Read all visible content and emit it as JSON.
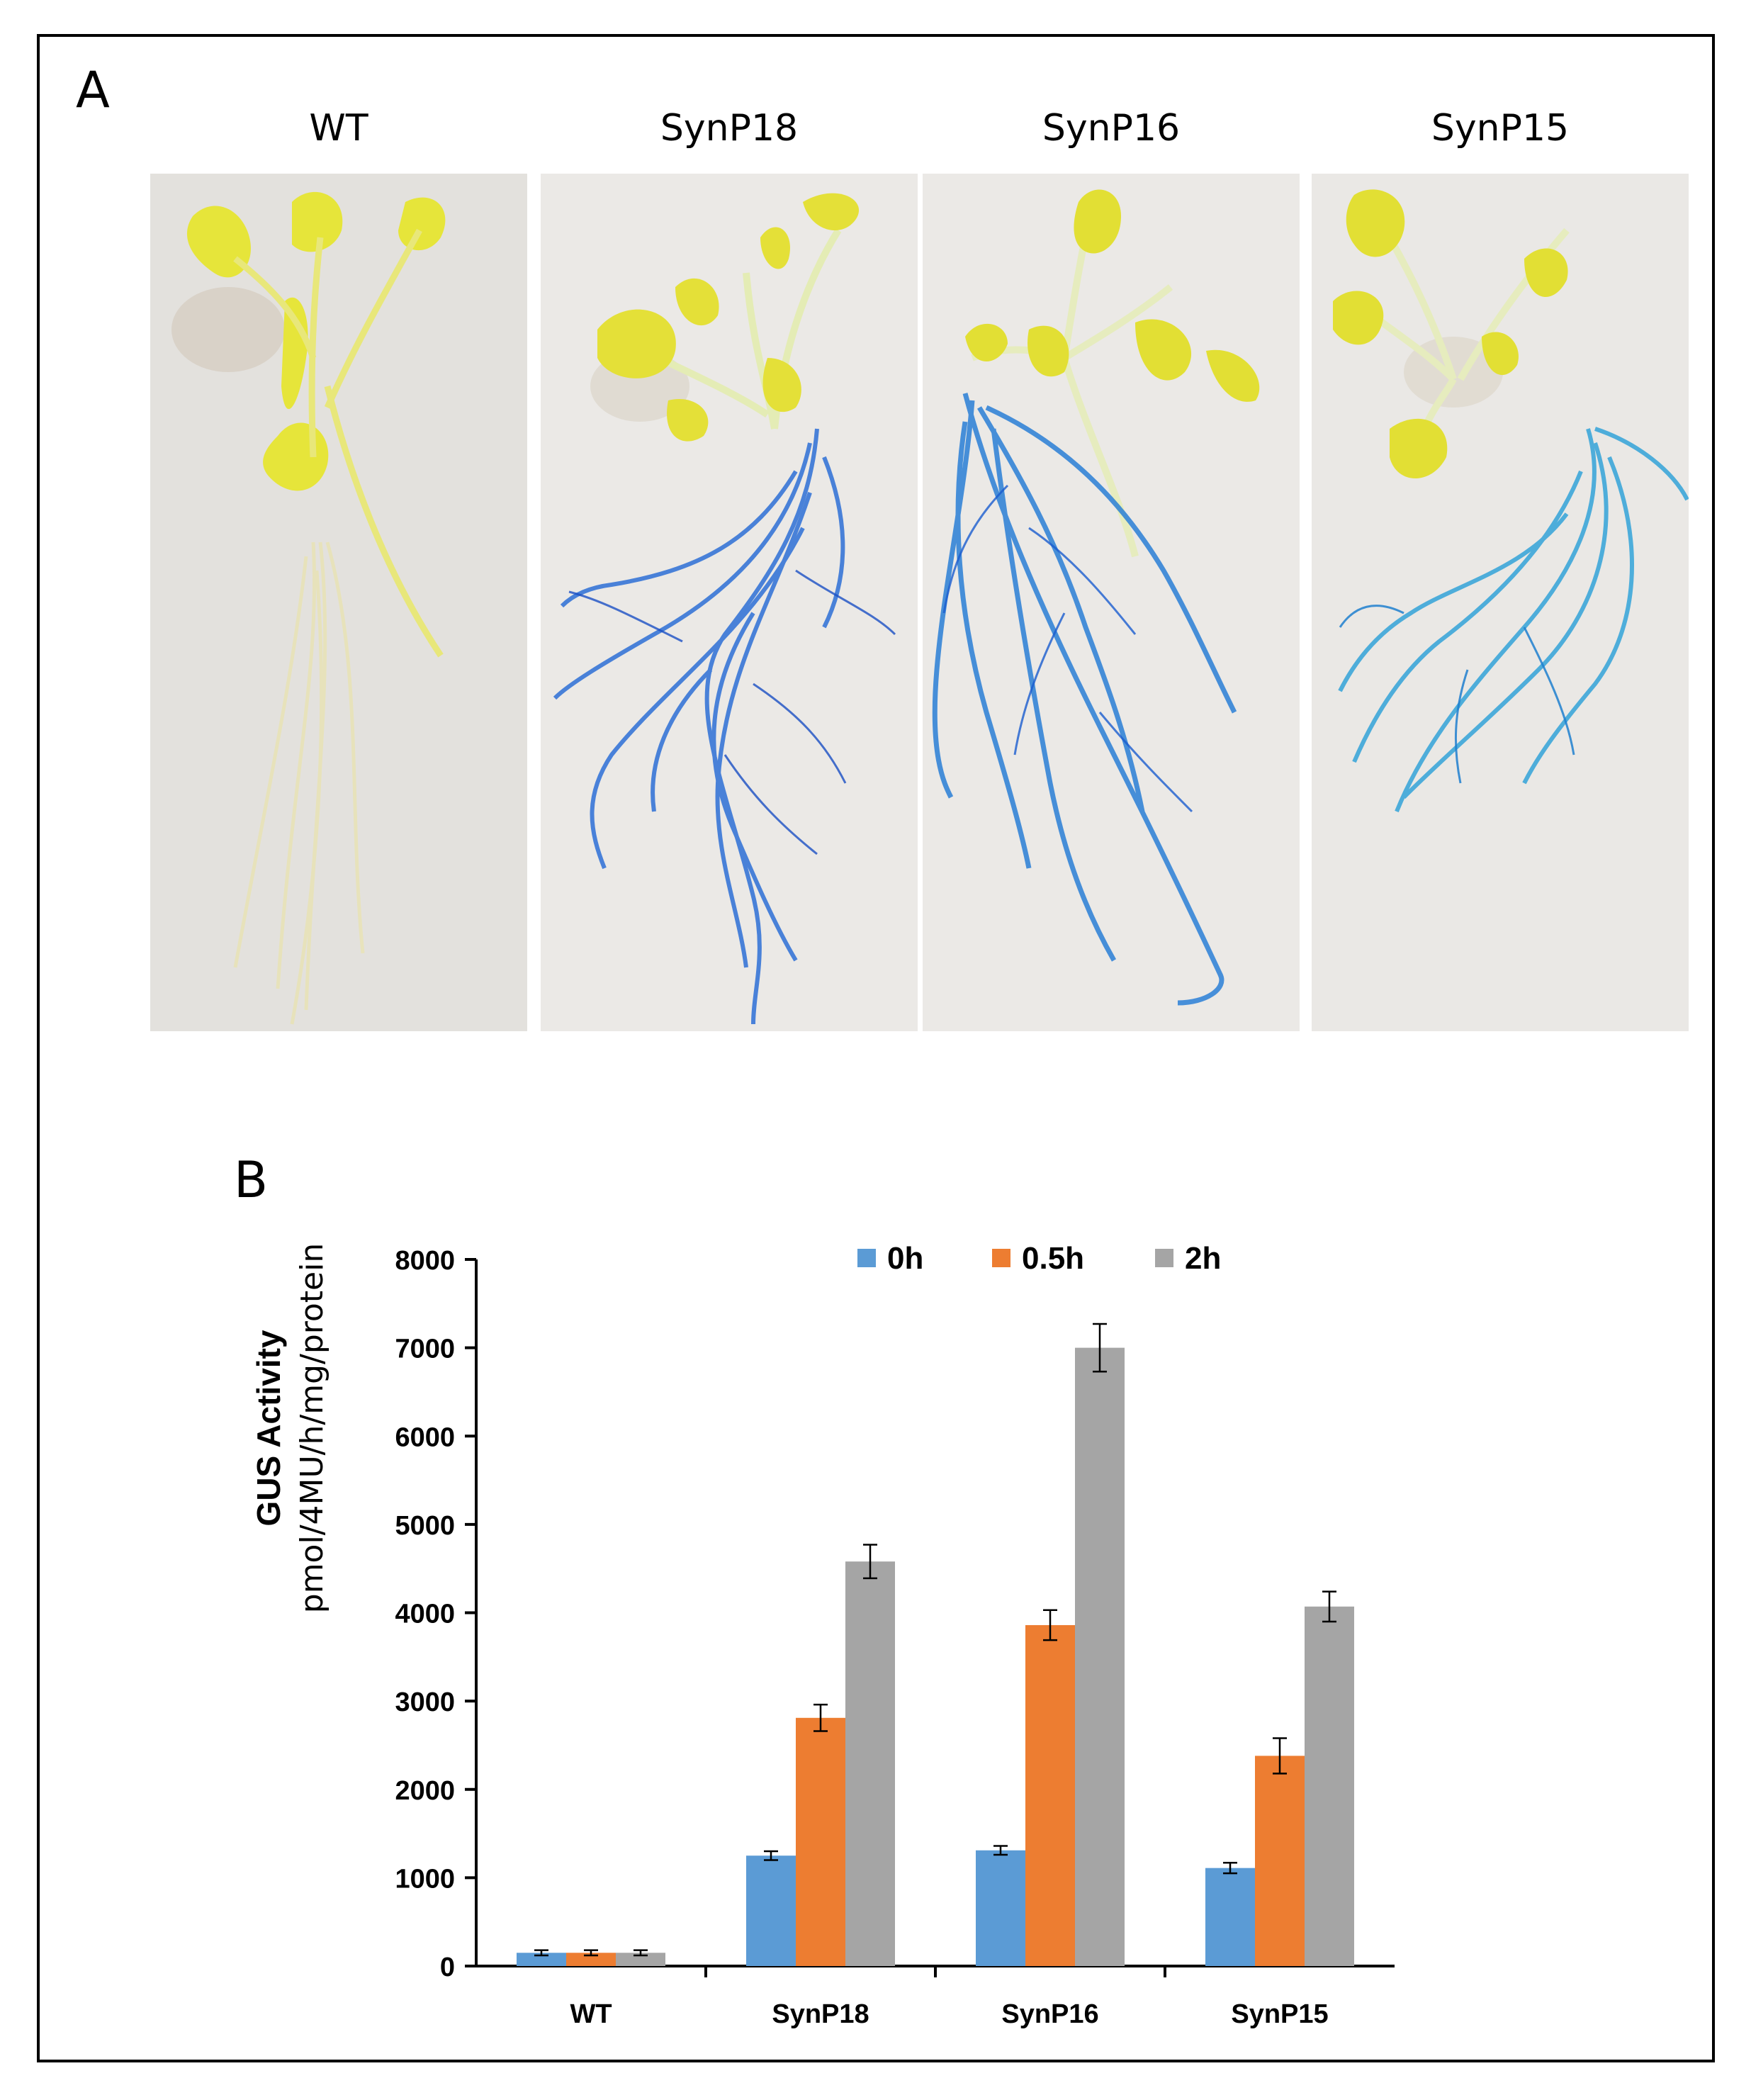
{
  "panel_a": {
    "letter": "A",
    "photos": [
      {
        "label": "WT",
        "staining": "none"
      },
      {
        "label": "SynP18",
        "staining": "blue roots"
      },
      {
        "label": "SynP16",
        "staining": "blue roots"
      },
      {
        "label": "SynP15",
        "staining": "blue roots"
      }
    ]
  },
  "panel_b": {
    "letter": "B"
  },
  "chart_data": {
    "type": "bar",
    "title": "",
    "xlabel": "",
    "ylabel": "GUS Activity",
    "ylabel_units": "pmol/4MU/h/mg/protein",
    "ylim": [
      0,
      8000
    ],
    "yticks": [
      0,
      1000,
      2000,
      3000,
      4000,
      5000,
      6000,
      7000,
      8000
    ],
    "categories": [
      "WT",
      "SynP18",
      "SynP16",
      "SynP15"
    ],
    "grid": false,
    "legend_position": "top",
    "series": [
      {
        "name": "0h",
        "color": "#5b9bd5",
        "values": [
          150,
          1250,
          1310,
          1110
        ],
        "errors": [
          30,
          50,
          50,
          60
        ]
      },
      {
        "name": "0.5h",
        "color": "#ed7d31",
        "values": [
          150,
          2810,
          3860,
          2380
        ],
        "errors": [
          30,
          150,
          170,
          200
        ]
      },
      {
        "name": "2h",
        "color": "#a5a5a5",
        "values": [
          150,
          4580,
          7000,
          4070
        ],
        "errors": [
          30,
          190,
          270,
          170
        ]
      }
    ]
  }
}
